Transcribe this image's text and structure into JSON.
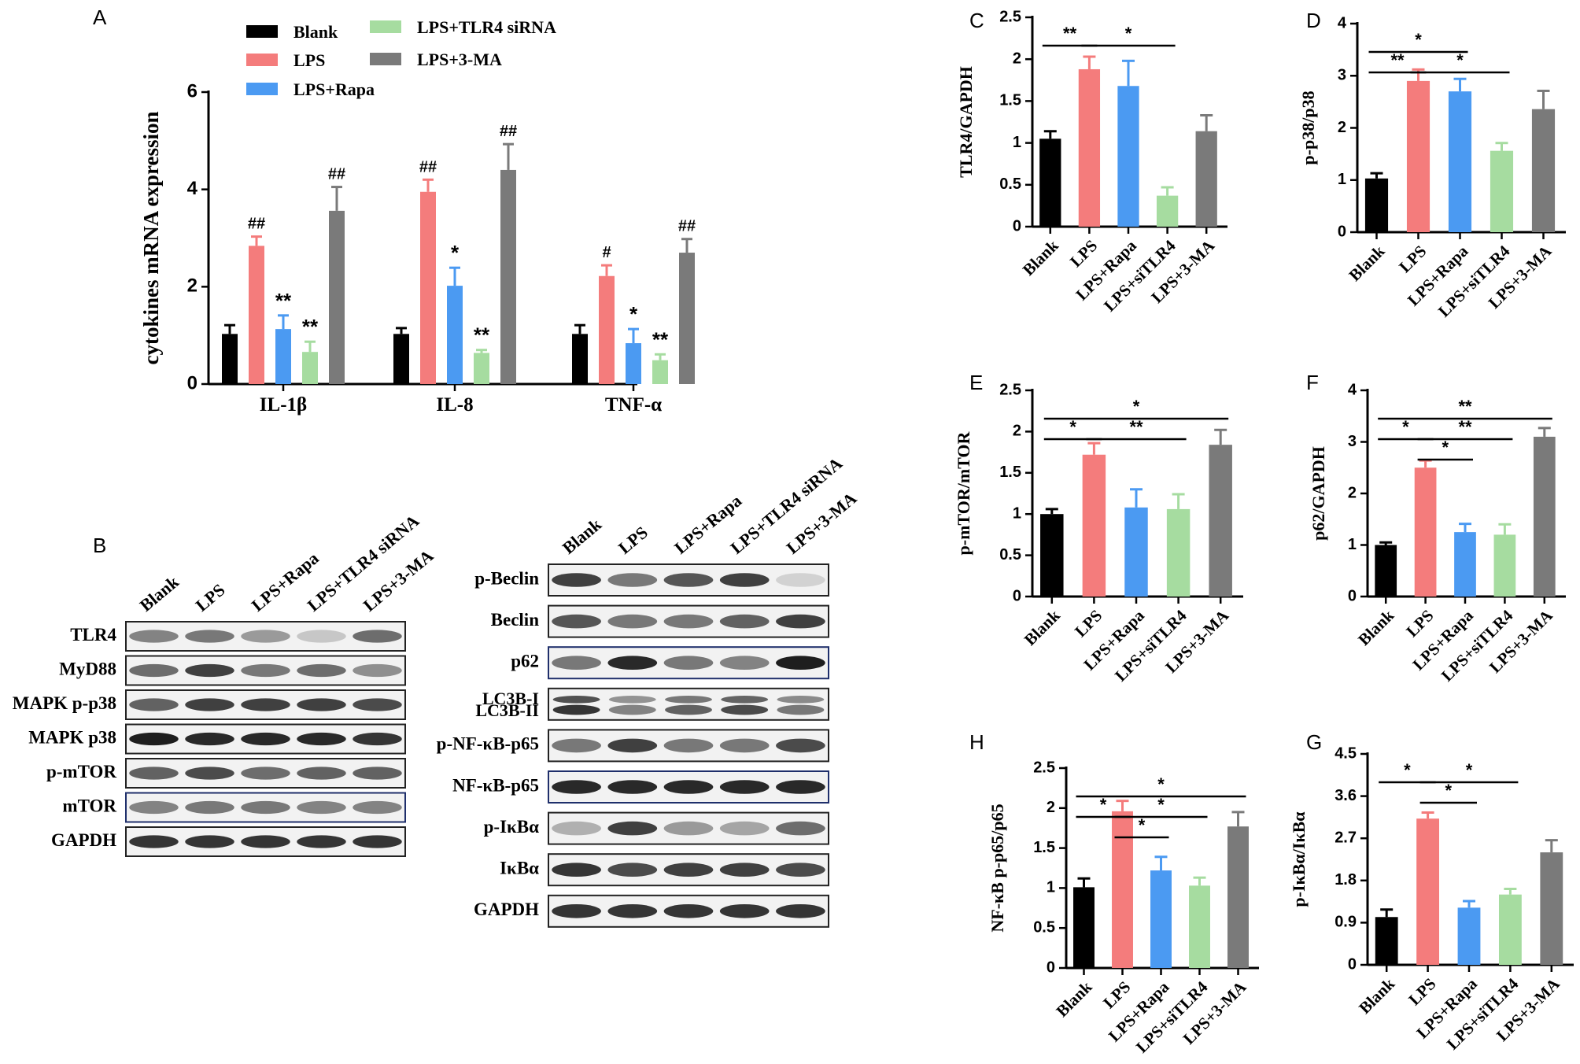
{
  "groups": [
    "Blank",
    "LPS",
    "LPS+Rapa",
    "LPS+TLR4 siRNA",
    "LPS+3-MA"
  ],
  "colors": {
    "Blank": "#000000",
    "LPS": "#f47c7c",
    "LPS+Rapa": "#4b9af2",
    "LPS+TLR4 siRNA": "#a6dca0",
    "LPS+3-MA": "#7a7a7a"
  },
  "legend": {
    "items": [
      "Blank",
      "LPS",
      "LPS+Rapa",
      "LPS+TLR4 siRNA",
      "LPS+3-MA"
    ]
  },
  "panel_labels": {
    "A": "A",
    "B": "B",
    "C": "C",
    "D": "D",
    "E": "E",
    "F": "F",
    "G": "G",
    "H": "H"
  },
  "chart_data": [
    {
      "panel": "A",
      "type": "bar",
      "grouped": true,
      "categories": [
        "IL-1β",
        "IL-8",
        "TNF-α"
      ],
      "ylabel": "cytokines mRNA expression",
      "ylim": [
        0,
        6
      ],
      "yticks": [
        0,
        2,
        4,
        6
      ],
      "series": [
        {
          "name": "Blank",
          "values": [
            1.03,
            1.03,
            1.03
          ],
          "errors": [
            0.18,
            0.12,
            0.18
          ],
          "marks": [
            "",
            "",
            ""
          ]
        },
        {
          "name": "LPS",
          "values": [
            2.84,
            3.95,
            2.22
          ],
          "errors": [
            0.19,
            0.25,
            0.22
          ],
          "marks": [
            "##",
            "##",
            "#"
          ]
        },
        {
          "name": "LPS+Rapa",
          "values": [
            1.13,
            2.02,
            0.84
          ],
          "errors": [
            0.28,
            0.37,
            0.29
          ],
          "marks": [
            "**",
            "*",
            "*"
          ]
        },
        {
          "name": "LPS+TLR4 siRNA",
          "values": [
            0.66,
            0.64,
            0.49
          ],
          "errors": [
            0.21,
            0.06,
            0.12
          ],
          "marks": [
            "**",
            "**",
            "**"
          ]
        },
        {
          "name": "LPS+3-MA",
          "values": [
            3.56,
            4.4,
            2.7
          ],
          "errors": [
            0.49,
            0.53,
            0.28
          ],
          "marks": [
            "##",
            "##",
            "##"
          ]
        }
      ]
    },
    {
      "panel": "C",
      "type": "bar",
      "categories": [
        "Blank",
        "LPS",
        "LPS+Rapa",
        "LPS+siTLR4",
        "LPS+3-MA"
      ],
      "values": [
        1.05,
        1.88,
        1.68,
        0.37,
        1.14
      ],
      "errors": [
        0.09,
        0.15,
        0.3,
        0.1,
        0.19
      ],
      "ylabel": "TLR4/GAPDH",
      "ylim": [
        0,
        2.5
      ],
      "yticks": [
        0.0,
        0.5,
        1.0,
        1.5,
        2.0,
        2.5
      ],
      "significance": [
        {
          "from": 0,
          "to": 1,
          "label": "**"
        },
        {
          "from": 1,
          "to": 3,
          "label": "*"
        }
      ]
    },
    {
      "panel": "D",
      "type": "bar",
      "categories": [
        "Blank",
        "LPS",
        "LPS+Rapa",
        "LPS+siTLR4",
        "LPS+3-MA"
      ],
      "values": [
        1.03,
        2.9,
        2.7,
        1.56,
        2.36
      ],
      "errors": [
        0.1,
        0.22,
        0.24,
        0.15,
        0.35
      ],
      "ylabel": "p-p38/p38",
      "ylim": [
        0,
        4
      ],
      "yticks": [
        0,
        1,
        2,
        3,
        4
      ],
      "significance": [
        {
          "from": 0,
          "to": 2,
          "label": "*"
        },
        {
          "from": 0,
          "to": 1,
          "label": "**"
        },
        {
          "from": 1,
          "to": 3,
          "label": "*"
        }
      ]
    },
    {
      "panel": "E",
      "type": "bar",
      "categories": [
        "Blank",
        "LPS",
        "LPS+Rapa",
        "LPS+siTLR4",
        "LPS+3-MA"
      ],
      "values": [
        1.0,
        1.72,
        1.08,
        1.06,
        1.84
      ],
      "errors": [
        0.06,
        0.14,
        0.22,
        0.18,
        0.18
      ],
      "ylabel": "p-mTOR/mTOR",
      "ylim": [
        0,
        2.5
      ],
      "yticks": [
        0.0,
        0.5,
        1.0,
        1.5,
        2.0,
        2.5
      ],
      "significance": [
        {
          "from": 0,
          "to": 4,
          "label": "*"
        },
        {
          "from": 0,
          "to": 1,
          "label": "*"
        },
        {
          "from": 1,
          "to": 3,
          "label": "**"
        }
      ]
    },
    {
      "panel": "F",
      "type": "bar",
      "categories": [
        "Blank",
        "LPS",
        "LPS+Rapa",
        "LPS+siTLR4",
        "LPS+3-MA"
      ],
      "values": [
        1.0,
        2.5,
        1.25,
        1.2,
        3.1
      ],
      "errors": [
        0.05,
        0.14,
        0.16,
        0.2,
        0.17
      ],
      "ylabel": "p62/GAPDH",
      "ylim": [
        0,
        4
      ],
      "yticks": [
        0,
        1,
        2,
        3,
        4
      ],
      "significance": [
        {
          "from": 0,
          "to": 4,
          "label": "**"
        },
        {
          "from": 1,
          "to": 3,
          "label": "**"
        },
        {
          "from": 0,
          "to": 1,
          "label": "*"
        },
        {
          "from": 1,
          "to": 2,
          "label": "*"
        }
      ]
    },
    {
      "panel": "H",
      "type": "bar",
      "categories": [
        "Blank",
        "LPS",
        "LPS+Rapa",
        "LPS+siTLR4",
        "LPS+3-MA"
      ],
      "values": [
        1.01,
        1.96,
        1.22,
        1.03,
        1.77
      ],
      "errors": [
        0.11,
        0.13,
        0.17,
        0.1,
        0.18
      ],
      "ylabel": "NF-κB p-p65/p65",
      "ylim": [
        0,
        2.5
      ],
      "yticks": [
        0.0,
        0.5,
        1.0,
        1.5,
        2.0,
        2.5
      ],
      "significance": [
        {
          "from": 0,
          "to": 4,
          "label": "*"
        },
        {
          "from": 1,
          "to": 3,
          "label": "*"
        },
        {
          "from": 0,
          "to": 1,
          "label": "*"
        },
        {
          "from": 1,
          "to": 2,
          "label": "*"
        }
      ]
    },
    {
      "panel": "G",
      "type": "bar",
      "categories": [
        "Blank",
        "LPS",
        "LPS+Rapa",
        "LPS+siTLR4",
        "LPS+3-MA"
      ],
      "values": [
        1.02,
        3.12,
        1.22,
        1.5,
        2.4
      ],
      "errors": [
        0.16,
        0.13,
        0.14,
        0.12,
        0.26
      ],
      "ylabel": "p-IκBα/IκBα",
      "ylim": [
        0,
        4.5
      ],
      "yticks": [
        0.0,
        0.9,
        1.8,
        2.7,
        3.6,
        4.5
      ],
      "significance": [
        {
          "from": 1,
          "to": 3,
          "label": "*"
        },
        {
          "from": 0,
          "to": 1,
          "label": "*"
        },
        {
          "from": 1,
          "to": 2,
          "label": "*"
        }
      ]
    }
  ],
  "blots": [
    {
      "panel": "B",
      "lanes": [
        "Blank",
        "LPS",
        "LPS+Rapa",
        "LPS+TLR4 siRNA",
        "LPS+3-MA"
      ],
      "rows": [
        {
          "label": "TLR4",
          "intensity": [
            0.55,
            0.6,
            0.45,
            0.25,
            0.65
          ],
          "outline": "#222222"
        },
        {
          "label": "MyD88",
          "intensity": [
            0.65,
            0.85,
            0.6,
            0.65,
            0.5
          ],
          "outline": "#222222"
        },
        {
          "label": "MAPK p-p38",
          "intensity": [
            0.7,
            0.85,
            0.85,
            0.85,
            0.8
          ],
          "outline": "#222222"
        },
        {
          "label": "MAPK p38",
          "intensity": [
            1.0,
            0.95,
            0.95,
            0.95,
            0.9
          ],
          "outline": "#222222"
        },
        {
          "label": "p-mTOR",
          "intensity": [
            0.7,
            0.8,
            0.65,
            0.7,
            0.7
          ],
          "outline": "#222222"
        },
        {
          "label": "mTOR",
          "intensity": [
            0.55,
            0.6,
            0.6,
            0.55,
            0.55
          ],
          "outline": "#1f2f6b"
        },
        {
          "label": "GAPDH",
          "intensity": [
            0.9,
            0.9,
            0.9,
            0.9,
            0.9
          ],
          "outline": "#222222"
        }
      ]
    },
    {
      "panel": "B2",
      "lanes": [
        "Blank",
        "LPS",
        "LPS+Rapa",
        "LPS+TLR4 siRNA",
        "LPS+3-MA"
      ],
      "rows": [
        {
          "label": "p-Beclin",
          "intensity": [
            0.85,
            0.6,
            0.75,
            0.85,
            0.2
          ],
          "outline": "#222222"
        },
        {
          "label": "Beclin",
          "intensity": [
            0.75,
            0.6,
            0.6,
            0.7,
            0.85
          ],
          "outline": "#222222"
        },
        {
          "label": "p62",
          "intensity": [
            0.6,
            0.95,
            0.6,
            0.55,
            1.0
          ],
          "outline": "#1f2f6b"
        },
        {
          "label": "LC3B-I\nLC3B-II",
          "intensity": [
            0.9,
            0.55,
            0.7,
            0.8,
            0.6
          ],
          "outline": "#222222"
        },
        {
          "label": "p-NF-κB-p65",
          "intensity": [
            0.6,
            0.85,
            0.6,
            0.6,
            0.8
          ],
          "outline": "#222222"
        },
        {
          "label": "NF-κB-p65",
          "intensity": [
            0.95,
            0.95,
            0.95,
            0.95,
            0.95
          ],
          "outline": "#1f2f6b"
        },
        {
          "label": "p-IκBα",
          "intensity": [
            0.35,
            0.85,
            0.45,
            0.4,
            0.65
          ],
          "outline": "#222222"
        },
        {
          "label": "IκBα",
          "intensity": [
            0.9,
            0.8,
            0.85,
            0.85,
            0.8
          ],
          "outline": "#222222"
        },
        {
          "label": "GAPDH",
          "intensity": [
            0.9,
            0.9,
            0.9,
            0.9,
            0.9
          ],
          "outline": "#222222"
        }
      ]
    }
  ]
}
